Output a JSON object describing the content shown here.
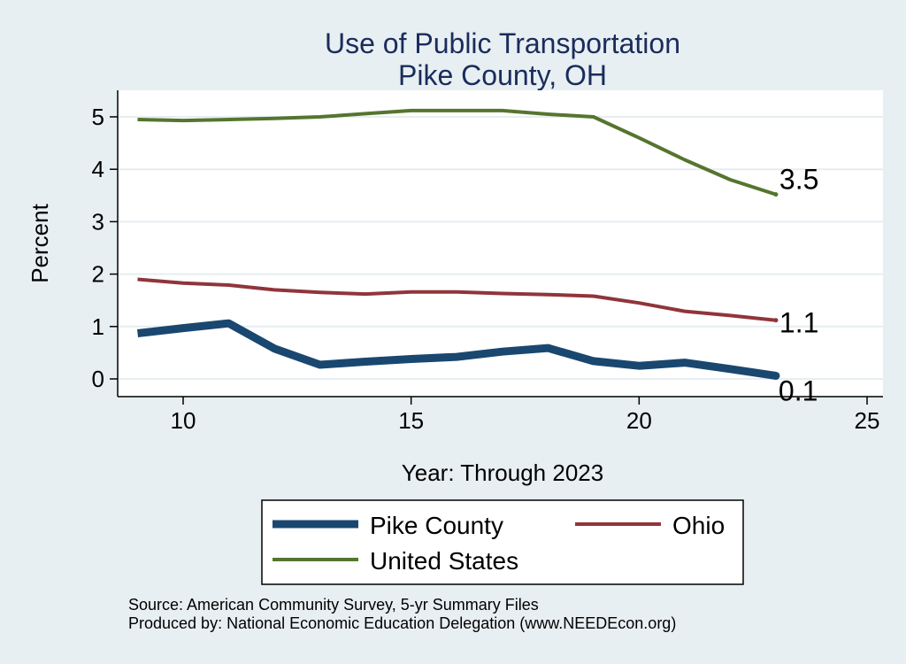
{
  "chart_data": {
    "type": "line",
    "title": "Use of Public Transportation",
    "subtitle": "Pike County, OH",
    "xlabel": "Year: Through 2023",
    "ylabel": "Percent",
    "xlim": [
      9,
      25
    ],
    "ylim": [
      0,
      5.2
    ],
    "x_ticks": [
      10,
      15,
      20,
      25
    ],
    "y_ticks": [
      0,
      1,
      2,
      3,
      4,
      5
    ],
    "grid": true,
    "legend_placement": "bottom",
    "x": [
      9,
      10,
      11,
      12,
      13,
      14,
      15,
      16,
      17,
      18,
      19,
      20,
      21,
      22,
      23
    ],
    "series": [
      {
        "name": "Pike County",
        "color": "#1a476f",
        "values": [
          0.87,
          0.97,
          1.06,
          0.58,
          0.27,
          0.33,
          0.38,
          0.42,
          0.52,
          0.59,
          0.34,
          0.25,
          0.31,
          0.19,
          0.06
        ],
        "end_label": "0.1"
      },
      {
        "name": "Ohio",
        "color": "#90353b",
        "values": [
          1.9,
          1.83,
          1.79,
          1.7,
          1.65,
          1.62,
          1.66,
          1.66,
          1.63,
          1.61,
          1.58,
          1.45,
          1.29,
          1.21,
          1.12
        ],
        "end_label": "1.1"
      },
      {
        "name": "United States",
        "color": "#55752f",
        "values": [
          4.95,
          4.93,
          4.95,
          4.97,
          5.0,
          5.06,
          5.12,
          5.12,
          5.12,
          5.05,
          5.0,
          4.6,
          4.18,
          3.8,
          3.52
        ],
        "end_label": "3.5"
      }
    ]
  },
  "footer": {
    "source": "Source: American Community Survey, 5-yr Summary Files",
    "produced": "Produced by: National Economic Education Delegation (www.NEEDEcon.org)"
  }
}
